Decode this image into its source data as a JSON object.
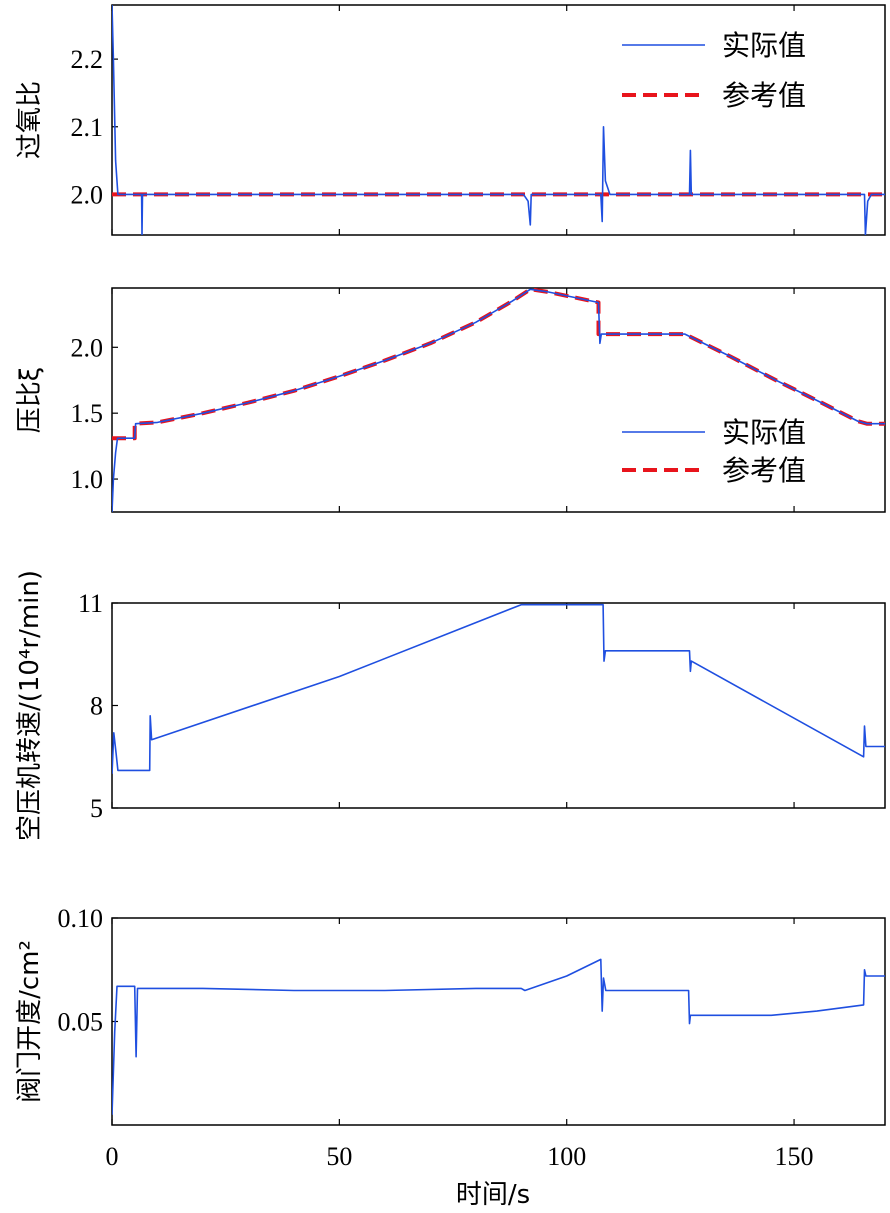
{
  "chart_data": {
    "type": "line",
    "xlabel": "时间/s",
    "xlim": [
      0,
      170
    ],
    "xticks": [
      0,
      50,
      100,
      150
    ],
    "colors": {
      "actual": "#1f4fe0",
      "reference": "#e8141c"
    },
    "panels": [
      {
        "id": "oxygen-ratio",
        "ylabel": "过氧比",
        "ylim": [
          1.94,
          2.28
        ],
        "yticks": [
          "2.0",
          "2.1",
          "2.2"
        ],
        "legend": {
          "placement": "top-right",
          "entries": [
            "实际值",
            "参考值"
          ]
        },
        "series": [
          {
            "name": "实际值",
            "style": "solid",
            "points": [
              [
                0,
                2.28
              ],
              [
                0.3,
                2.2
              ],
              [
                0.8,
                2.05
              ],
              [
                1.3,
                2.0
              ],
              [
                6.5,
                2.0
              ],
              [
                6.6,
                1.94
              ],
              [
                6.7,
                2.0
              ],
              [
                90.5,
                2.0
              ],
              [
                91.5,
                1.99
              ],
              [
                92.0,
                1.955
              ],
              [
                92.2,
                2.0
              ],
              [
                107.5,
                2.0
              ],
              [
                107.8,
                1.96
              ],
              [
                108.1,
                2.1
              ],
              [
                108.5,
                2.02
              ],
              [
                109.5,
                2.0
              ],
              [
                127.0,
                2.0
              ],
              [
                127.2,
                2.065
              ],
              [
                127.4,
                2.0
              ],
              [
                165.5,
                2.0
              ],
              [
                165.7,
                1.94
              ],
              [
                166.2,
                1.99
              ],
              [
                167,
                2.0
              ],
              [
                170,
                2.0
              ]
            ]
          },
          {
            "name": "参考值",
            "style": "dashed",
            "points": [
              [
                0,
                2.0
              ],
              [
                170,
                2.0
              ]
            ]
          }
        ]
      },
      {
        "id": "pressure-ratio",
        "ylabel": "压比ξ",
        "ylim": [
          0.75,
          2.45
        ],
        "yticks": [
          "1.0",
          "1.5",
          "2.0"
        ],
        "legend": {
          "placement": "bottom-right",
          "entries": [
            "实际值",
            "参考值"
          ]
        },
        "series": [
          {
            "name": "实际值",
            "style": "solid",
            "points": [
              [
                0,
                0.75
              ],
              [
                0.3,
                1.0
              ],
              [
                0.8,
                1.2
              ],
              [
                1.2,
                1.31
              ],
              [
                5,
                1.31
              ],
              [
                5.2,
                1.42
              ],
              [
                10,
                1.43
              ],
              [
                20,
                1.5
              ],
              [
                30,
                1.58
              ],
              [
                40,
                1.67
              ],
              [
                50,
                1.78
              ],
              [
                60,
                1.9
              ],
              [
                70,
                2.03
              ],
              [
                80,
                2.19
              ],
              [
                88,
                2.35
              ],
              [
                92,
                2.44
              ],
              [
                96,
                2.42
              ],
              [
                107,
                2.34
              ],
              [
                107.3,
                2.03
              ],
              [
                107.6,
                2.1
              ],
              [
                126,
                2.1
              ],
              [
                136,
                1.93
              ],
              [
                146,
                1.75
              ],
              [
                156,
                1.58
              ],
              [
                164,
                1.44
              ],
              [
                166,
                1.42
              ],
              [
                170,
                1.42
              ]
            ]
          },
          {
            "name": "参考值",
            "style": "dashed",
            "points": [
              [
                0,
                1.31
              ],
              [
                5,
                1.31
              ],
              [
                5,
                1.42
              ],
              [
                10,
                1.43
              ],
              [
                20,
                1.5
              ],
              [
                30,
                1.58
              ],
              [
                40,
                1.67
              ],
              [
                50,
                1.78
              ],
              [
                60,
                1.9
              ],
              [
                70,
                2.03
              ],
              [
                80,
                2.19
              ],
              [
                88,
                2.35
              ],
              [
                92,
                2.44
              ],
              [
                96,
                2.42
              ],
              [
                107,
                2.34
              ],
              [
                107,
                2.1
              ],
              [
                126,
                2.1
              ],
              [
                136,
                1.93
              ],
              [
                146,
                1.75
              ],
              [
                156,
                1.58
              ],
              [
                164,
                1.44
              ],
              [
                166,
                1.42
              ],
              [
                170,
                1.42
              ]
            ]
          }
        ]
      },
      {
        "id": "compressor-speed",
        "ylabel": "空压机转速/(10⁴r/min)",
        "ylim": [
          5,
          11
        ],
        "yticks": [
          "5",
          "8",
          "11"
        ],
        "series": [
          {
            "name": "",
            "style": "solid",
            "points": [
              [
                0,
                6.0
              ],
              [
                0.4,
                7.2
              ],
              [
                0.9,
                6.6
              ],
              [
                1.3,
                6.1
              ],
              [
                8.3,
                6.1
              ],
              [
                8.4,
                7.7
              ],
              [
                8.7,
                7.0
              ],
              [
                50,
                8.85
              ],
              [
                90,
                10.95
              ],
              [
                108,
                10.95
              ],
              [
                108.2,
                9.3
              ],
              [
                108.5,
                9.6
              ],
              [
                127,
                9.6
              ],
              [
                127.2,
                9.0
              ],
              [
                127.4,
                9.3
              ],
              [
                165.3,
                6.5
              ],
              [
                165.5,
                7.4
              ],
              [
                165.8,
                6.8
              ],
              [
                170,
                6.8
              ]
            ]
          }
        ]
      },
      {
        "id": "valve-opening",
        "ylabel": "阀门开度/cm²",
        "ylim": [
          0,
          0.1
        ],
        "yticks": [
          "0.05",
          "0.10"
        ],
        "series": [
          {
            "name": "",
            "style": "solid",
            "points": [
              [
                0,
                0.005
              ],
              [
                0.6,
                0.045
              ],
              [
                1.1,
                0.067
              ],
              [
                5.0,
                0.067
              ],
              [
                5.3,
                0.033
              ],
              [
                5.6,
                0.066
              ],
              [
                20,
                0.066
              ],
              [
                40,
                0.065
              ],
              [
                60,
                0.065
              ],
              [
                80,
                0.066
              ],
              [
                90,
                0.066
              ],
              [
                90.8,
                0.065
              ],
              [
                100,
                0.072
              ],
              [
                107.5,
                0.08
              ],
              [
                107.8,
                0.055
              ],
              [
                108.1,
                0.071
              ],
              [
                108.6,
                0.065
              ],
              [
                126.8,
                0.065
              ],
              [
                127.0,
                0.049
              ],
              [
                127.2,
                0.053
              ],
              [
                145,
                0.053
              ],
              [
                155,
                0.055
              ],
              [
                165.3,
                0.058
              ],
              [
                165.5,
                0.075
              ],
              [
                165.8,
                0.072
              ],
              [
                170,
                0.072
              ]
            ]
          }
        ]
      }
    ]
  }
}
